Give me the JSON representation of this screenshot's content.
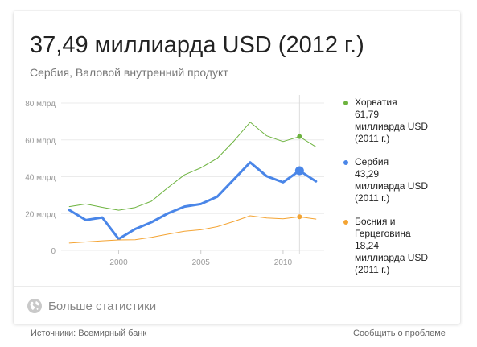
{
  "headline": "37,49 миллиарда USD (2012 г.)",
  "subtitle": "Сербия, Валовой внутренний продукт",
  "more_stats": {
    "label": "Больше статистики",
    "icon": "globe-icon"
  },
  "footer": {
    "sources": "Источники: Всемирный банк",
    "report": "Сообщить о проблеме"
  },
  "legend": [
    {
      "lines": [
        "Хорватия",
        "61,79",
        "миллиарда USD",
        "(2011 г.)"
      ]
    },
    {
      "lines": [
        "Сербия",
        "43,29",
        "миллиарда USD",
        "(2011 г.)"
      ]
    },
    {
      "lines": [
        "Босния и",
        "Герцеговина",
        "18,24",
        "миллиарда USD",
        "(2011 г.)"
      ]
    }
  ],
  "chart_data": {
    "type": "line",
    "title": "",
    "xlabel": "",
    "ylabel": "",
    "xlim": [
      1996.5,
      2012.5
    ],
    "ylim": [
      0,
      80
    ],
    "x_ticks": [
      {
        "value": 2000,
        "label": "2000"
      },
      {
        "value": 2005,
        "label": "2005"
      },
      {
        "value": 2010,
        "label": "2010"
      }
    ],
    "y_ticks": [
      {
        "value": 0,
        "label": "0"
      },
      {
        "value": 20,
        "label": "20 млрд"
      },
      {
        "value": 40,
        "label": "40 млрд"
      },
      {
        "value": 60,
        "label": "60 млрд"
      },
      {
        "value": 80,
        "label": "80 млрд"
      }
    ],
    "grid": true,
    "legend_position": "right",
    "highlight_x": 2011,
    "x": [
      1997,
      1998,
      1999,
      2000,
      2001,
      2002,
      2003,
      2004,
      2005,
      2006,
      2007,
      2008,
      2009,
      2010,
      2011,
      2012
    ],
    "series": [
      {
        "name": "Хорватия",
        "color": "#6db33f",
        "values": [
          23.8,
          25.2,
          23.4,
          21.8,
          23.3,
          26.7,
          34.1,
          41.0,
          44.8,
          50.0,
          59.3,
          69.6,
          62.2,
          59.1,
          61.79,
          56.2
        ]
      },
      {
        "name": "Сербия",
        "color": "#4a86e8",
        "values": [
          21.9,
          16.5,
          17.9,
          6.2,
          11.6,
          15.3,
          20.1,
          23.8,
          25.2,
          29.2,
          38.5,
          47.8,
          40.3,
          37.0,
          43.29,
          37.49
        ]
      },
      {
        "name": "Босния и Герцеговина",
        "color": "#f4a433",
        "values": [
          4.0,
          4.6,
          5.2,
          5.7,
          5.8,
          7.1,
          8.8,
          10.4,
          11.2,
          12.9,
          15.7,
          18.8,
          17.6,
          17.2,
          18.24,
          17.0
        ]
      }
    ]
  }
}
